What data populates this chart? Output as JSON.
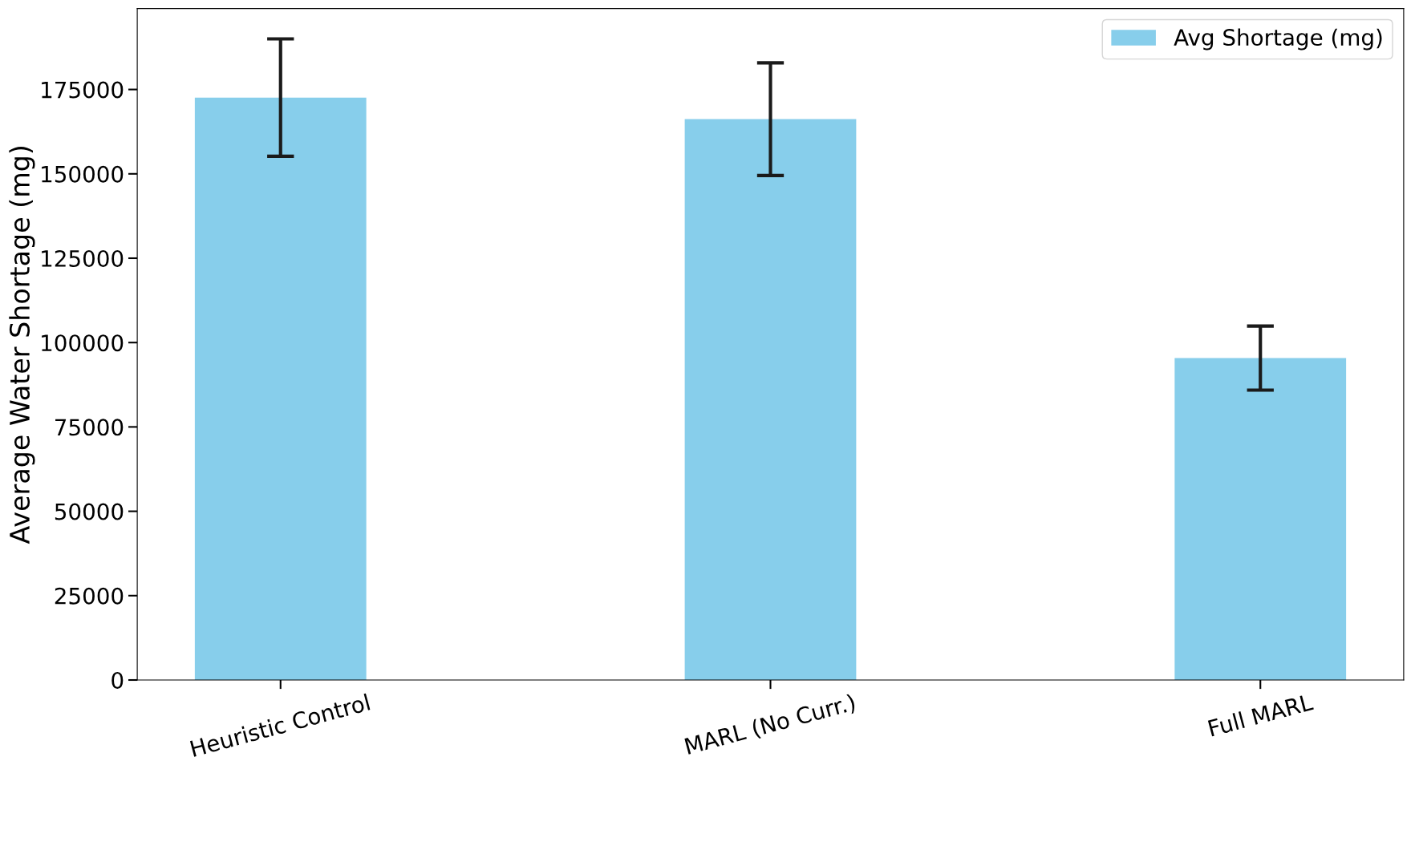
{
  "chart_data": {
    "type": "bar",
    "ylabel": "Average Water Shortage (mg)",
    "categories": [
      "Heuristic Control",
      "MARL (No Curr.)",
      "Full MARL"
    ],
    "series": [
      {
        "name": "Avg Shortage (mg)",
        "color": "#87ceeb",
        "values": [
          172600,
          166200,
          95400
        ],
        "errors": [
          17400,
          16700,
          9500
        ]
      }
    ],
    "ylim": [
      0,
      199000
    ],
    "yticks": [
      0,
      25000,
      50000,
      75000,
      100000,
      125000,
      150000,
      175000
    ],
    "grid": false,
    "legend": "top right"
  }
}
